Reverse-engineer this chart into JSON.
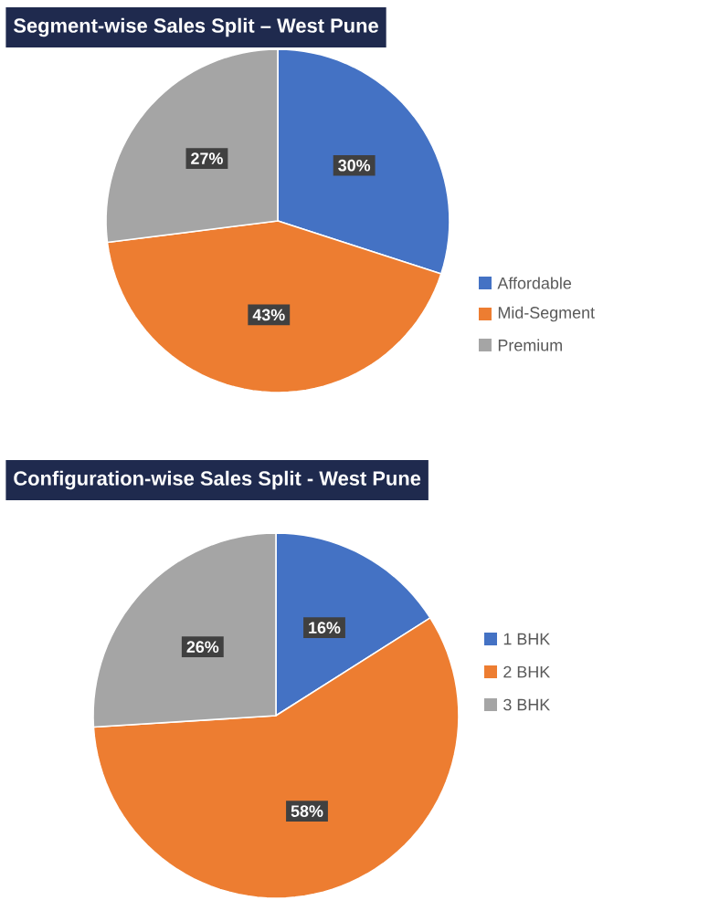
{
  "chart_data": [
    {
      "type": "pie",
      "title": "Segment-wise Sales Split – West Pune",
      "categories": [
        "Affordable",
        "Mid-Segment",
        "Premium"
      ],
      "values": [
        30,
        43,
        27
      ],
      "colors": [
        "#4472c4",
        "#ed7d31",
        "#a5a5a5"
      ],
      "value_labels": [
        "30%",
        "43%",
        "27%"
      ],
      "legend": "right"
    },
    {
      "type": "pie",
      "title": "Configuration-wise Sales Split - West Pune",
      "categories": [
        "1 BHK",
        "2 BHK",
        "3 BHK"
      ],
      "values": [
        16,
        58,
        26
      ],
      "colors": [
        "#4472c4",
        "#ed7d31",
        "#a5a5a5"
      ],
      "value_labels": [
        "16%",
        "58%",
        "26%"
      ],
      "legend": "right"
    }
  ]
}
